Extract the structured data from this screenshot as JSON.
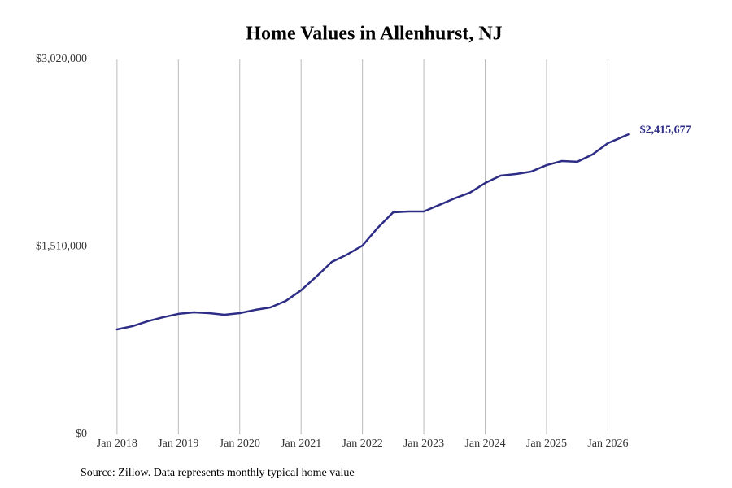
{
  "chart_data": {
    "type": "line",
    "title": "Home Values in Allenhurst, NJ",
    "source": "Source: Zillow. Data represents monthly typical home value",
    "x": [
      "2018-01",
      "2018-04",
      "2018-07",
      "2018-10",
      "2019-01",
      "2019-04",
      "2019-07",
      "2019-10",
      "2020-01",
      "2020-04",
      "2020-07",
      "2020-10",
      "2021-01",
      "2021-04",
      "2021-07",
      "2021-10",
      "2022-01",
      "2022-04",
      "2022-07",
      "2022-10",
      "2023-01",
      "2023-04",
      "2023-07",
      "2023-10",
      "2024-01",
      "2024-04",
      "2024-07",
      "2024-10",
      "2025-01",
      "2025-04",
      "2025-07",
      "2025-10",
      "2026-01",
      "2026-04",
      "2026-05"
    ],
    "series": [
      {
        "name": "Typical home value",
        "color": "#2e2d86",
        "values": [
          845000,
          871000,
          911000,
          943000,
          970000,
          983000,
          976000,
          963000,
          976000,
          1002000,
          1022000,
          1074000,
          1160000,
          1271000,
          1389000,
          1448000,
          1520000,
          1664000,
          1788000,
          1795000,
          1795000,
          1847000,
          1900000,
          1946000,
          2024000,
          2083000,
          2096000,
          2116000,
          2168000,
          2201000,
          2195000,
          2254000,
          2345000,
          2398000,
          2415677
        ],
        "value_labels": [
          null,
          null,
          null,
          null,
          null,
          null,
          null,
          null,
          null,
          null,
          null,
          null,
          null,
          null,
          null,
          null,
          null,
          null,
          null,
          null,
          null,
          null,
          null,
          null,
          null,
          null,
          null,
          null,
          null,
          null,
          null,
          null,
          null,
          null,
          "$2,415,677"
        ]
      }
    ],
    "xlim": [
      "2017-10",
      "2026-10"
    ],
    "xticks": [
      {
        "value": "2018-01",
        "label": "Jan 2018"
      },
      {
        "value": "2019-01",
        "label": "Jan 2019"
      },
      {
        "value": "2020-01",
        "label": "Jan 2020"
      },
      {
        "value": "2021-01",
        "label": "Jan 2021"
      },
      {
        "value": "2022-01",
        "label": "Jan 2022"
      },
      {
        "value": "2023-01",
        "label": "Jan 2023"
      },
      {
        "value": "2024-01",
        "label": "Jan 2024"
      },
      {
        "value": "2025-01",
        "label": "Jan 2025"
      },
      {
        "value": "2026-01",
        "label": "Jan 2026"
      }
    ],
    "ylim": [
      0,
      3020000
    ],
    "yticks": [
      {
        "value": 0,
        "label": "$0"
      },
      {
        "value": 1510000,
        "label": "$1,510,000"
      },
      {
        "value": 3020000,
        "label": "$3,020,000"
      }
    ],
    "grid": "x"
  }
}
